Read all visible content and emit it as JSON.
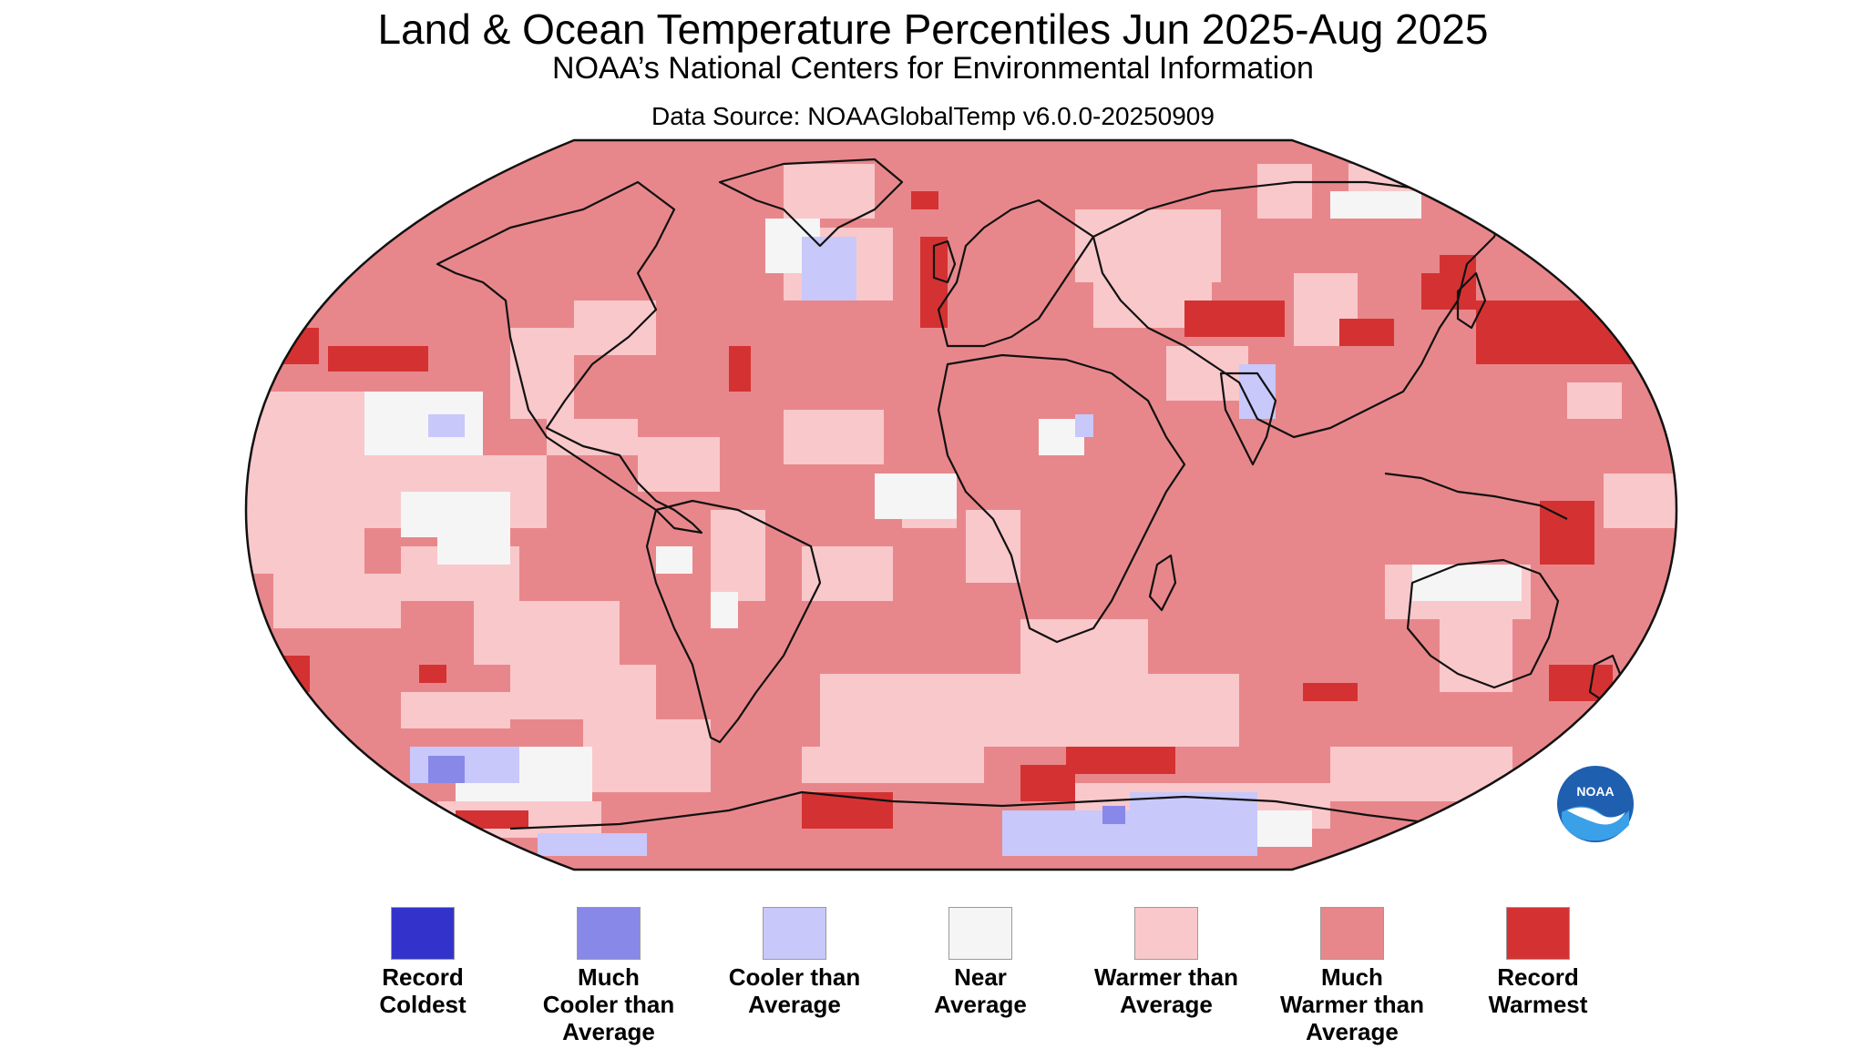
{
  "title": "Land & Ocean Temperature Percentiles Jun 2025-Aug 2025",
  "subtitle": "NOAA’s National Centers for Environmental Information",
  "source": "Data Source: NOAAGlobalTemp v6.0.0-20250909",
  "logo_text": "NOAA",
  "legend": [
    {
      "label": "Record\nColdest",
      "color": "#3333cc"
    },
    {
      "label": "Much\nCooler than\nAverage",
      "color": "#8888e8"
    },
    {
      "label": "Cooler than\nAverage",
      "color": "#c8c8fb"
    },
    {
      "label": "Near\nAverage",
      "color": "#f5f5f5"
    },
    {
      "label": "Warmer than\nAverage",
      "color": "#f9c8cb"
    },
    {
      "label": "Much\nWarmer than\nAverage",
      "color": "#e8878b"
    },
    {
      "label": "Record\nWarmest",
      "color": "#d43232"
    }
  ],
  "colors": {
    "map_background": "#e8878b",
    "warmer": "#f9c8cb",
    "near": "#f5f5f5",
    "cooler": "#c8c8fb",
    "much_cooler": "#8888e8",
    "record_warmest": "#d43232",
    "coastline": "#111111",
    "logo_blue": "#1f5fb0",
    "logo_light": "#3aa0e8"
  }
}
